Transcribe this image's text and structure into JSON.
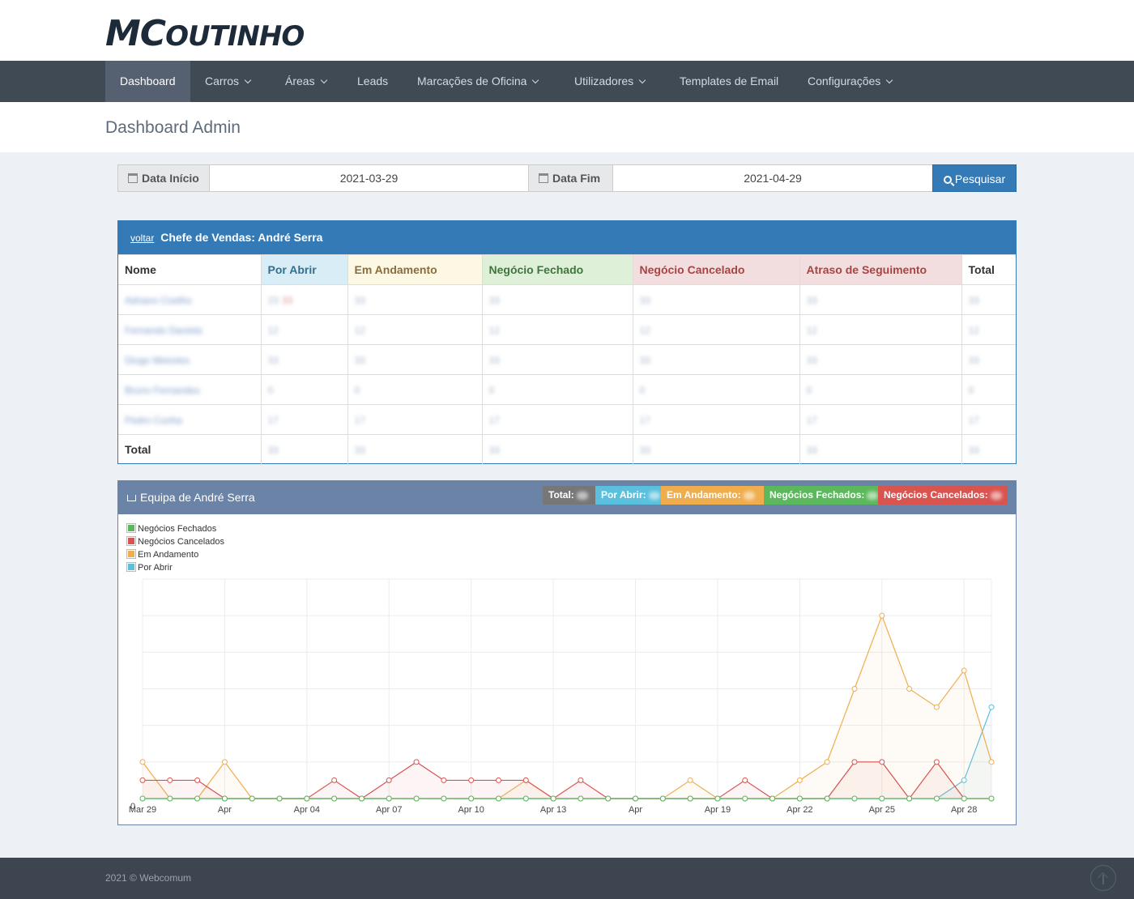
{
  "brand": {
    "logo_big": "MC",
    "logo_rest": "OUTINHO"
  },
  "nav": {
    "items": [
      {
        "label": "Dashboard",
        "active": true,
        "dropdown": false
      },
      {
        "label": "Carros",
        "dropdown": true
      },
      {
        "label": "Áreas",
        "dropdown": true
      },
      {
        "label": "Leads",
        "dropdown": false
      },
      {
        "label": "Marcações de Oficina",
        "dropdown": true
      },
      {
        "label": "Utilizadores",
        "dropdown": true
      },
      {
        "label": "Templates de Email",
        "dropdown": false
      },
      {
        "label": "Configurações",
        "dropdown": true
      }
    ]
  },
  "page": {
    "title": "Dashboard Admin"
  },
  "filters": {
    "start_label": "Data Início",
    "start_value": "2021-03-29",
    "end_label": "Data Fim",
    "end_value": "2021-04-29",
    "search_label": "Pesquisar"
  },
  "team_table": {
    "back_link": "voltar",
    "heading": "Chefe de Vendas: André Serra",
    "columns": [
      "Nome",
      "Por Abrir",
      "Em Andamento",
      "Negócio Fechado",
      "Negócio Cancelado",
      "Atraso de Seguimento",
      "Total"
    ],
    "rows": [
      {
        "name": "Adriano Coelho",
        "values": [
          "23",
          "33",
          "33",
          "33",
          "33",
          "33"
        ],
        "extra": "33"
      },
      {
        "name": "Fernando Daniela",
        "values": [
          "12",
          "12",
          "12",
          "12",
          "12",
          "12"
        ]
      },
      {
        "name": "Diogo Meireles",
        "values": [
          "33",
          "33",
          "33",
          "33",
          "33",
          "33"
        ]
      },
      {
        "name": "Bruno Fernandes",
        "values": [
          "0",
          "0",
          "0",
          "0",
          "0",
          "0"
        ]
      },
      {
        "name": "Pedro Cunha",
        "values": [
          "17",
          "17",
          "17",
          "17",
          "17",
          "17"
        ]
      }
    ],
    "total_label": "Total",
    "totals": [
      "33",
      "33",
      "33",
      "33",
      "33",
      "33"
    ]
  },
  "team_chart": {
    "title": "Equipa de André Serra",
    "badges": [
      {
        "label": "Total:",
        "color": "#777777"
      },
      {
        "label": "Por Abrir:",
        "color": "#5bc0de"
      },
      {
        "label": "Em Andamento:",
        "color": "#f0ad4e"
      },
      {
        "label": "Negócios Fechados:",
        "color": "#5cb85c"
      },
      {
        "label": "Negócios Cancelados:",
        "color": "#d9534f"
      }
    ],
    "legend": [
      {
        "label": "Negócios Fechados",
        "color": "#5cb85c"
      },
      {
        "label": "Negócios Cancelados",
        "color": "#d9534f"
      },
      {
        "label": "Em Andamento",
        "color": "#f0ad4e"
      },
      {
        "label": "Por Abrir",
        "color": "#5bc0de"
      }
    ]
  },
  "chart_data": {
    "type": "area",
    "title": "",
    "x": [
      "Mar 29",
      "Mar 30",
      "Mar 31",
      "Apr 01",
      "Apr 02",
      "Apr 03",
      "Apr 04",
      "Apr 05",
      "Apr 06",
      "Apr 07",
      "Apr 08",
      "Apr 09",
      "Apr 10",
      "Apr 11",
      "Apr 12",
      "Apr 13",
      "Apr 14",
      "Apr 15",
      "Apr 16",
      "Apr 17",
      "Apr 18",
      "Apr 19",
      "Apr 20",
      "Apr 21",
      "Apr 22",
      "Apr 23",
      "Apr 24",
      "Apr 25",
      "Apr 26",
      "Apr 27",
      "Apr 28",
      "Apr 29"
    ],
    "tick_labels": [
      {
        "i": 0,
        "label": "Mar 29"
      },
      {
        "i": 3,
        "label": "Apr"
      },
      {
        "i": 6,
        "label": "Apr 04"
      },
      {
        "i": 9,
        "label": "Apr 07"
      },
      {
        "i": 12,
        "label": "Apr 10"
      },
      {
        "i": 15,
        "label": "Apr 13"
      },
      {
        "i": 18,
        "label": "Apr"
      },
      {
        "i": 21,
        "label": "Apr 19"
      },
      {
        "i": 24,
        "label": "Apr 22"
      },
      {
        "i": 27,
        "label": "Apr 25"
      },
      {
        "i": 30,
        "label": "Apr 28"
      }
    ],
    "y_tick_label": "0",
    "ylim": [
      0,
      12
    ],
    "series": [
      {
        "name": "Negócios Fechados",
        "color": "#5cb85c",
        "values": [
          0,
          0,
          0,
          0,
          0,
          0,
          0,
          0,
          0,
          0,
          0,
          0,
          0,
          0,
          0,
          0,
          0,
          0,
          0,
          0,
          0,
          0,
          0,
          0,
          0,
          0,
          0,
          0,
          0,
          0,
          0,
          0
        ]
      },
      {
        "name": "Negócios Cancelados",
        "color": "#d9534f",
        "values": [
          1,
          1,
          1,
          0,
          0,
          0,
          0,
          1,
          0,
          1,
          2,
          1,
          1,
          1,
          1,
          0,
          1,
          0,
          0,
          0,
          0,
          0,
          1,
          0,
          0,
          0,
          2,
          2,
          0,
          2,
          0,
          0
        ]
      },
      {
        "name": "Em Andamento",
        "color": "#f0ad4e",
        "values": [
          2,
          0,
          0,
          2,
          0,
          0,
          0,
          0,
          0,
          0,
          0,
          0,
          0,
          0,
          1,
          0,
          0,
          0,
          0,
          0,
          1,
          0,
          0,
          0,
          1,
          2,
          6,
          10,
          6,
          5,
          7,
          2
        ]
      },
      {
        "name": "Por Abrir",
        "color": "#5bc0de",
        "values": [
          0,
          0,
          0,
          0,
          0,
          0,
          0,
          0,
          0,
          0,
          0,
          0,
          0,
          0,
          0,
          0,
          0,
          0,
          0,
          0,
          0,
          0,
          0,
          0,
          0,
          0,
          0,
          0,
          0,
          0,
          1,
          5
        ]
      }
    ],
    "grid": true,
    "legend_position": "top-left"
  },
  "footer": {
    "text": "2021 © Webcomum"
  }
}
